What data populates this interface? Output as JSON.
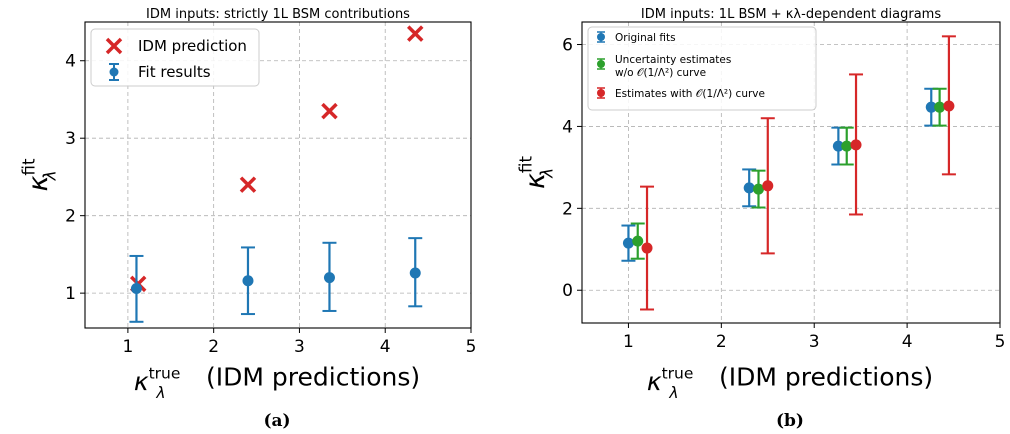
{
  "chart_data": [
    {
      "type": "scatter",
      "title": "IDM inputs: strictly 1L BSM contributions",
      "xlabel": "(IDM predictions)",
      "xlabel_symbol": "κ",
      "xlabel_sub": "λ",
      "xlabel_sup": "true",
      "ylabel_symbol": "κ",
      "ylabel_sub": "λ",
      "ylabel_sup": "fit",
      "xlim": [
        0.5,
        5.0
      ],
      "ylim": [
        0.55,
        4.5
      ],
      "xticks": [
        1,
        2,
        3,
        4,
        5
      ],
      "yticks": [
        1,
        2,
        3,
        4
      ],
      "grid": true,
      "legend_placement": "top-left",
      "subfigure_label": "(a)",
      "series": [
        {
          "name": "IDM prediction",
          "marker": "x",
          "color": "#d62728",
          "x": [
            1.12,
            2.4,
            3.35,
            4.35
          ],
          "y": [
            1.12,
            2.4,
            3.35,
            4.35
          ]
        },
        {
          "name": "Fit results",
          "marker": "errorbar",
          "color": "#1f77b4",
          "x": [
            1.1,
            2.4,
            3.35,
            4.35
          ],
          "y": [
            1.06,
            1.16,
            1.2,
            1.26
          ],
          "yerr_low": [
            0.63,
            0.73,
            0.77,
            0.83
          ],
          "yerr_high": [
            1.48,
            1.59,
            1.65,
            1.71
          ]
        }
      ]
    },
    {
      "type": "scatter",
      "title": "IDM inputs: 1L BSM + κλ-dependent diagrams",
      "xlabel": "(IDM predictions)",
      "xlabel_symbol": "κ",
      "xlabel_sub": "λ",
      "xlabel_sup": "true",
      "ylabel_symbol": "κ",
      "ylabel_sub": "λ",
      "ylabel_sup": "fit",
      "xlim": [
        0.5,
        5.0
      ],
      "ylim": [
        -0.8,
        6.55
      ],
      "xticks": [
        1,
        2,
        3,
        4,
        5
      ],
      "yticks": [
        0,
        2,
        4,
        6
      ],
      "grid": true,
      "legend_placement": "top-left",
      "subfigure_label": "(b)",
      "series": [
        {
          "name": "Original fits",
          "color": "#1f77b4",
          "x": [
            1.0,
            2.3,
            3.26,
            4.26
          ],
          "y": [
            1.15,
            2.5,
            3.52,
            4.47
          ],
          "yerr_low": [
            0.72,
            2.05,
            3.07,
            4.02
          ],
          "yerr_high": [
            1.58,
            2.95,
            3.97,
            4.92
          ]
        },
        {
          "name": "Uncertainty estimates",
          "name_line2": "w/o 𝒪(1/Λ²) curve",
          "color": "#2ca02c",
          "x": [
            1.1,
            2.4,
            3.35,
            4.35
          ],
          "y": [
            1.2,
            2.47,
            3.52,
            4.47
          ],
          "yerr_low": [
            0.77,
            2.02,
            3.07,
            4.02
          ],
          "yerr_high": [
            1.63,
            2.92,
            3.97,
            4.92
          ]
        },
        {
          "name": "Estimates with 𝒪(1/Λ²) curve",
          "color": "#d62728",
          "x": [
            1.2,
            2.5,
            3.45,
            4.45
          ],
          "y": [
            1.03,
            2.55,
            3.55,
            4.5
          ],
          "yerr_low": [
            -0.47,
            0.9,
            1.85,
            2.83
          ],
          "yerr_high": [
            2.53,
            4.2,
            5.27,
            6.2
          ]
        }
      ]
    }
  ]
}
